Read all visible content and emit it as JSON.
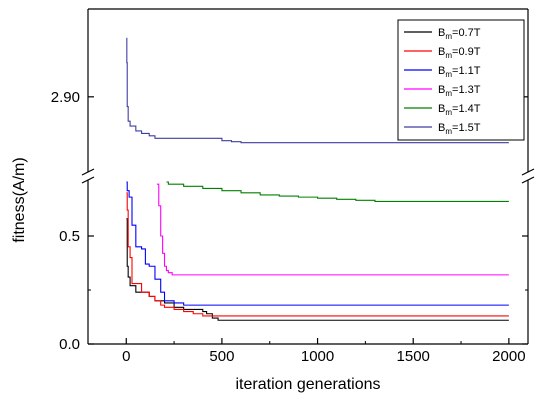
{
  "chart_data": {
    "type": "line",
    "xlabel": "iteration generations",
    "ylabel": "fitness(A/m)",
    "xlim": [
      -200,
      2100
    ],
    "xticks": [
      "0",
      "500",
      "1000",
      "1500",
      "2000"
    ],
    "yticks_lower": [
      "0.0",
      "0.5"
    ],
    "yticks_upper": [
      "2.90"
    ],
    "y_axis_break": {
      "lower_range": [
        0.0,
        0.75
      ],
      "upper_range": [
        2.75,
        3.08
      ]
    },
    "legend": {
      "position": "top-right"
    },
    "series": [
      {
        "name": "Bm=0.7T",
        "label_main": "B",
        "label_sub": "m",
        "label_rest": "=0.7T",
        "color": "#000000",
        "x": [
          1,
          5,
          10,
          20,
          50,
          80,
          120,
          150,
          200,
          250,
          300,
          400,
          420,
          450,
          480,
          500,
          600,
          800,
          1000,
          1500,
          2000
        ],
        "y": [
          0.58,
          0.36,
          0.31,
          0.27,
          0.24,
          0.24,
          0.22,
          0.2,
          0.19,
          0.17,
          0.16,
          0.15,
          0.14,
          0.12,
          0.11,
          0.11,
          0.11,
          0.11,
          0.11,
          0.11,
          0.11
        ]
      },
      {
        "name": "Bm=0.9T",
        "label_main": "B",
        "label_sub": "m",
        "label_rest": "=0.9T",
        "color": "#ff0000",
        "x": [
          1,
          5,
          10,
          20,
          30,
          40,
          60,
          80,
          100,
          120,
          150,
          180,
          200,
          250,
          300,
          350,
          400,
          450,
          500,
          600,
          800,
          1000,
          1500,
          2000
        ],
        "y": [
          0.7,
          0.62,
          0.45,
          0.4,
          0.28,
          0.28,
          0.28,
          0.24,
          0.24,
          0.22,
          0.2,
          0.18,
          0.17,
          0.16,
          0.15,
          0.14,
          0.13,
          0.13,
          0.13,
          0.13,
          0.13,
          0.13,
          0.13,
          0.13
        ]
      },
      {
        "name": "Bm=1.1T",
        "label_main": "B",
        "label_sub": "m",
        "label_rest": "=1.1T",
        "color": "#0000ff",
        "x": [
          1,
          5,
          15,
          30,
          50,
          80,
          100,
          120,
          150,
          180,
          200,
          250,
          300,
          400,
          500,
          1000,
          1500,
          2000
        ],
        "y": [
          0.75,
          0.71,
          0.68,
          0.55,
          0.45,
          0.44,
          0.37,
          0.36,
          0.3,
          0.24,
          0.2,
          0.19,
          0.18,
          0.18,
          0.18,
          0.18,
          0.18,
          0.18
        ]
      },
      {
        "name": "Bm=1.3T",
        "label_main": "B",
        "label_sub": "m",
        "label_rest": "=1.3T",
        "color": "#ff00ff",
        "x": [
          160,
          170,
          180,
          190,
          200,
          210,
          220,
          240,
          260,
          300,
          400,
          500,
          1000,
          1500,
          2000
        ],
        "y": [
          0.74,
          0.64,
          0.5,
          0.42,
          0.36,
          0.34,
          0.33,
          0.32,
          0.32,
          0.32,
          0.32,
          0.32,
          0.32,
          0.32,
          0.32
        ]
      },
      {
        "name": "Bm=1.4T",
        "label_main": "B",
        "label_sub": "m",
        "label_rest": "=1.4T",
        "color": "#008000",
        "x": [
          210,
          220,
          240,
          300,
          400,
          500,
          600,
          700,
          800,
          900,
          1000,
          1100,
          1200,
          1300,
          1400,
          1500,
          1600,
          1700,
          1800,
          1900,
          2000
        ],
        "y": [
          0.75,
          0.74,
          0.74,
          0.73,
          0.72,
          0.71,
          0.7,
          0.69,
          0.685,
          0.68,
          0.675,
          0.67,
          0.665,
          0.66,
          0.66,
          0.66,
          0.66,
          0.66,
          0.66,
          0.66,
          0.66
        ]
      },
      {
        "name": "Bm=1.5T",
        "label_main": "B",
        "label_sub": "m",
        "label_rest": "=1.5T",
        "color": "#3f3f9f",
        "x": [
          1,
          3,
          5,
          10,
          20,
          50,
          80,
          120,
          150,
          200,
          250,
          300,
          400,
          500,
          550,
          600,
          700,
          1000,
          1500,
          2000
        ],
        "y": [
          3.02,
          2.97,
          2.88,
          2.85,
          2.84,
          2.83,
          2.825,
          2.82,
          2.815,
          2.815,
          2.815,
          2.815,
          2.815,
          2.81,
          2.808,
          2.806,
          2.806,
          2.806,
          2.806,
          2.806
        ]
      }
    ]
  }
}
